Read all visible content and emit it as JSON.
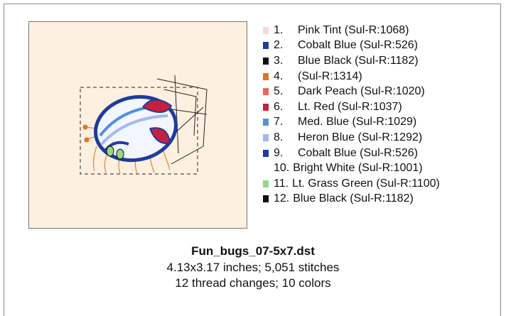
{
  "threads": [
    {
      "number": "1.",
      "name": "Pink Tint (Sul-R:1068)",
      "color": "#f8d6dc"
    },
    {
      "number": "2.",
      "name": "Cobalt Blue (Sul-R:526)",
      "color": "#1f3c9c"
    },
    {
      "number": "3.",
      "name": "Blue Black (Sul-R:1182)",
      "color": "#111111"
    },
    {
      "number": "4.",
      "name": "(Sul-R:1314)",
      "color": "#e8701e"
    },
    {
      "number": "5.",
      "name": "Dark Peach (Sul-R:1020)",
      "color": "#f06464"
    },
    {
      "number": "6.",
      "name": "Lt. Red (Sul-R:1037)",
      "color": "#c8203c"
    },
    {
      "number": "7.",
      "name": "Med. Blue (Sul-R:1029)",
      "color": "#4e90e0"
    },
    {
      "number": "8.",
      "name": "Heron Blue (Sul-R:1292)",
      "color": "#a2b8f0"
    },
    {
      "number": "9.",
      "name": "Cobalt Blue (Sul-R:526)",
      "color": "#26389e"
    },
    {
      "number": "10.",
      "name": "Bright White (Sul-R:1001)",
      "color": "#ffffff"
    },
    {
      "number": "11.",
      "name": "Lt. Grass Green (Sul-R:1100)",
      "color": "#94da84"
    },
    {
      "number": "12.",
      "name": "Blue Black (Sul-R:1182)",
      "color": "#111111"
    }
  ],
  "footer": {
    "filename": "Fun_bugs_07-5x7.dst",
    "size_line": "4.13x3.17 inches; 5,051 stitches",
    "colors_line": "12 thread changes; 10 colors"
  }
}
